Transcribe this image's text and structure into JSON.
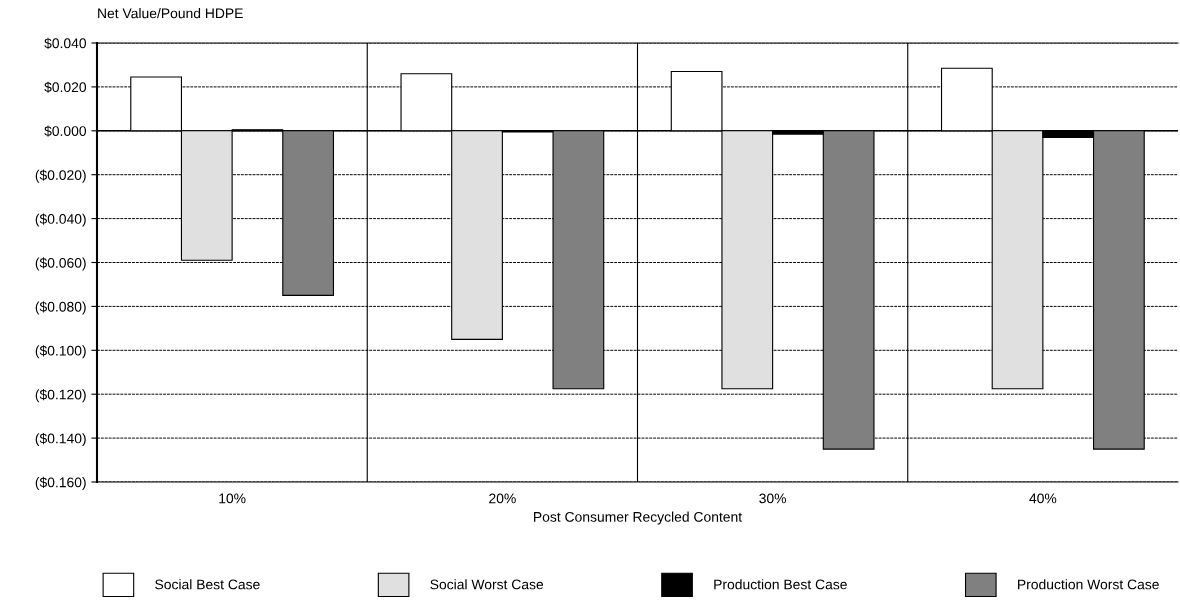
{
  "chart_data": {
    "type": "bar",
    "ylabel": "Net Value/Pound HDPE",
    "xlabel": "Post Consumer Recycled Content",
    "categories": [
      "10%",
      "20%",
      "30%",
      "40%"
    ],
    "series": [
      {
        "name": "Social Best Case",
        "color": "#ffffff",
        "values": [
          0.0245,
          0.026,
          0.027,
          0.0285
        ]
      },
      {
        "name": "Social Worst Case",
        "color": "#e0e0e0",
        "values": [
          -0.059,
          -0.095,
          -0.1175,
          -0.1175
        ]
      },
      {
        "name": "Production Best Case",
        "color": "#000000",
        "values": [
          0.0005,
          -0.0005,
          -0.0015,
          -0.003
        ]
      },
      {
        "name": "Production Worst Case",
        "color": "#808080",
        "values": [
          -0.075,
          -0.1175,
          -0.145,
          -0.145
        ]
      }
    ],
    "ylim": [
      -0.16,
      0.04
    ],
    "yticks": [
      {
        "value": 0.04,
        "label": "$0.040"
      },
      {
        "value": 0.02,
        "label": "$0.020"
      },
      {
        "value": 0,
        "label": "$0.000"
      },
      {
        "value": -0.02,
        "label": "($0.020)"
      },
      {
        "value": -0.04,
        "label": "($0.040)"
      },
      {
        "value": -0.06,
        "label": "($0.060)"
      },
      {
        "value": -0.08,
        "label": "($0.080)"
      },
      {
        "value": -0.1,
        "label": "($0.100)"
      },
      {
        "value": -0.12,
        "label": "($0.120)"
      },
      {
        "value": -0.14,
        "label": "($0.140)"
      },
      {
        "value": -0.16,
        "label": "($0.160)"
      }
    ],
    "grid": "y",
    "legend": "bottom"
  }
}
